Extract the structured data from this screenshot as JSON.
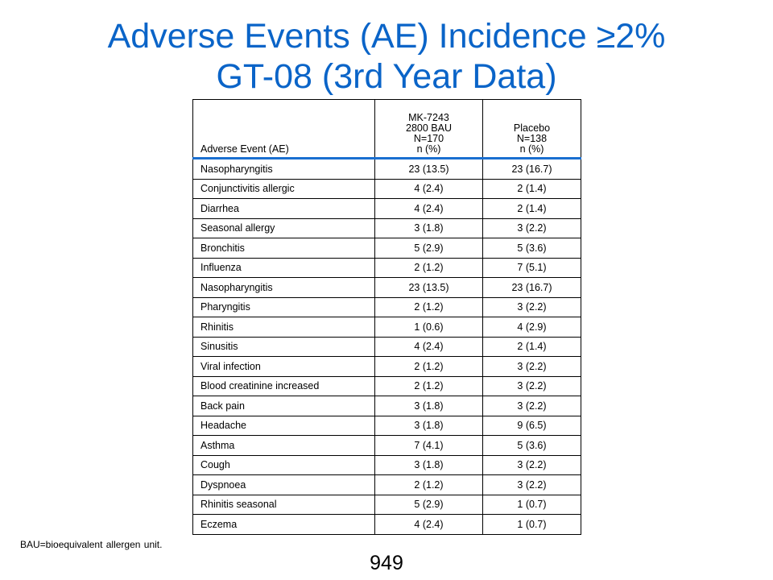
{
  "title": {
    "line1": "Adverse Events (AE) Incidence ≥2%",
    "line2": "GT-08 (3rd Year Data)"
  },
  "colors": {
    "title": "#0a64c8",
    "header_rule": "#1a6fd0"
  },
  "table": {
    "headers": {
      "event": "Adverse Event (AE)",
      "treatment": [
        "MK-7243",
        "2800 BAU",
        "N=170",
        "n (%)"
      ],
      "placebo": [
        "Placebo",
        "N=138",
        "n (%)"
      ]
    },
    "rows": [
      [
        "Nasopharyngitis",
        "23 (13.5)",
        "23 (16.7)"
      ],
      [
        "Conjunctivitis allergic",
        "4 (2.4)",
        "2 (1.4)"
      ],
      [
        "Diarrhea",
        "4 (2.4)",
        "2 (1.4)"
      ],
      [
        "Seasonal allergy",
        "3 (1.8)",
        "3 (2.2)"
      ],
      [
        "Bronchitis",
        "5 (2.9)",
        "5 (3.6)"
      ],
      [
        "Influenza",
        "2 (1.2)",
        "7 (5.1)"
      ],
      [
        "Nasopharyngitis",
        "23 (13.5)",
        "23 (16.7)"
      ],
      [
        "Pharyngitis",
        "2 (1.2)",
        "3 (2.2)"
      ],
      [
        "Rhinitis",
        "1 (0.6)",
        "4 (2.9)"
      ],
      [
        "Sinusitis",
        "4 (2.4)",
        "2 (1.4)"
      ],
      [
        "Viral infection",
        "2 (1.2)",
        "3 (2.2)"
      ],
      [
        "Blood creatinine increased",
        "2 (1.2)",
        "3 (2.2)"
      ],
      [
        "Back pain",
        "3 (1.8)",
        "3 (2.2)"
      ],
      [
        "Headache",
        "3 (1.8)",
        "9 (6.5)"
      ],
      [
        "Asthma",
        "7 (4.1)",
        "5 (3.6)"
      ],
      [
        "Cough",
        "3 (1.8)",
        "3 (2.2)"
      ],
      [
        "Dyspnoea",
        "2 (1.2)",
        "3 (2.2)"
      ],
      [
        "Rhinitis seasonal",
        "5 (2.9)",
        "1 (0.7)"
      ],
      [
        "Eczema",
        "4 (2.4)",
        "1 (0.7)"
      ]
    ]
  },
  "footnote": "BAU=bioequivalent allergen unit.",
  "page_number": "949"
}
